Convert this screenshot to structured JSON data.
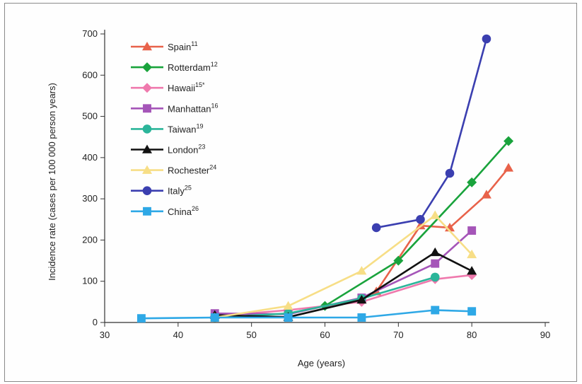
{
  "chart_data": {
    "type": "line",
    "xlabel": "Age (years)",
    "ylabel": "Incidence rate (cases per 100 000 person years)",
    "xlim": [
      30,
      90
    ],
    "ylim": [
      0,
      700
    ],
    "xticks": [
      30,
      40,
      50,
      60,
      70,
      80,
      90
    ],
    "yticks": [
      0,
      100,
      200,
      300,
      400,
      500,
      600,
      700
    ],
    "grid": false,
    "legend_position": "top-left",
    "series": [
      {
        "name": "Spain",
        "ref": "11",
        "color": "#e8624a",
        "marker": "triangle",
        "x": [
          67,
          73,
          77,
          82,
          85
        ],
        "y": [
          75,
          235,
          230,
          310,
          375
        ]
      },
      {
        "name": "Rotterdam",
        "ref": "12",
        "color": "#19a33c",
        "marker": "diamond",
        "x": [
          60,
          70,
          80,
          85
        ],
        "y": [
          40,
          150,
          340,
          440
        ]
      },
      {
        "name": "Hawaii",
        "ref": "15*",
        "color": "#ef79ad",
        "marker": "diamond",
        "x": [
          45,
          55,
          65,
          75,
          80
        ],
        "y": [
          15,
          30,
          50,
          105,
          115
        ]
      },
      {
        "name": "Manhattan",
        "ref": "16",
        "color": "#a555b8",
        "marker": "square",
        "x": [
          45,
          55,
          65,
          75,
          80
        ],
        "y": [
          22,
          20,
          60,
          143,
          223
        ]
      },
      {
        "name": "Taiwan",
        "ref": "19",
        "color": "#2bb59a",
        "marker": "circle",
        "x": [
          45,
          55,
          65,
          75
        ],
        "y": [
          12,
          22,
          58,
          110
        ]
      },
      {
        "name": "London",
        "ref": "23",
        "color": "#111111",
        "marker": "triangle",
        "x": [
          45,
          55,
          65,
          75,
          80
        ],
        "y": [
          18,
          13,
          55,
          170,
          125
        ]
      },
      {
        "name": "Rochester",
        "ref": "24",
        "color": "#f7de86",
        "marker": "triangle",
        "x": [
          45,
          55,
          65,
          75,
          80
        ],
        "y": [
          12,
          40,
          125,
          260,
          165
        ]
      },
      {
        "name": "Italy",
        "ref": "25",
        "color": "#3b3fb0",
        "marker": "circle",
        "x": [
          67,
          73,
          77,
          82
        ],
        "y": [
          230,
          250,
          362,
          688
        ]
      },
      {
        "name": "China",
        "ref": "26",
        "color": "#2ea8e6",
        "marker": "square",
        "x": [
          35,
          45,
          55,
          65,
          75,
          80
        ],
        "y": [
          10,
          12,
          12,
          12,
          30,
          27
        ]
      }
    ]
  }
}
